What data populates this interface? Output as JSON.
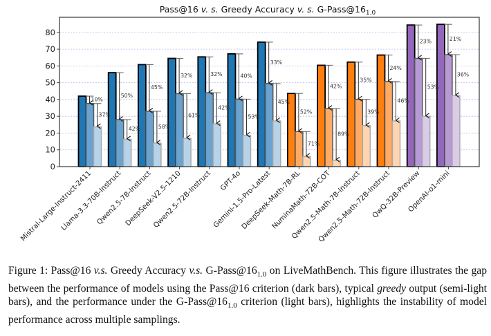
{
  "chart_data": {
    "type": "bar",
    "title": {
      "prefix": "Pass@16 ",
      "vs1": "v. s.",
      "middle": " Greedy Accuracy ",
      "vs2": "v. s.",
      "suffix": " G-Pass@16",
      "subscript": "1.0"
    },
    "xlabel": "",
    "ylabel": "",
    "ylim": [
      0,
      89
    ],
    "yticks": [
      0,
      10,
      20,
      30,
      40,
      50,
      60,
      70,
      80
    ],
    "grid": "horizontal dashed",
    "legend": "none",
    "categories": [
      "Mistral-Large-Instruct-2411",
      "Llama-3.3-70B-Instruct",
      "Qwen2.5-7B-Instruct",
      "DeepSeek-V2.5-1210",
      "Qwen2.5-72B-Instruct",
      "GPT-4o",
      "Gemini-1.5-Pro-Latest",
      "DeepSeek-Math-7B-RL",
      "NuminaMath-72B-COT",
      "Qwen2.5-Math-7B-Instruct",
      "Qwen2.5-Math-72B-Instruct",
      "QwQ-32B-Preview",
      "OpenAI-o1-mini"
    ],
    "color_family": [
      "blue",
      "blue",
      "blue",
      "blue",
      "blue",
      "blue",
      "blue",
      "orange",
      "orange",
      "orange",
      "orange",
      "purple",
      "purple"
    ],
    "palette": {
      "blue": [
        "#1f77b4",
        "#6aa3cf",
        "#b7d3e9"
      ],
      "orange": [
        "#ff7f0e",
        "#ffab66",
        "#ffd5b0"
      ],
      "purple": [
        "#9467bd",
        "#b79ad5",
        "#dacce9"
      ]
    },
    "series": [
      {
        "name": "Pass@16",
        "style": "dark",
        "values": [
          42.0,
          56.0,
          60.8,
          64.5,
          65.4,
          67.2,
          74.2,
          43.6,
          60.4,
          62.3,
          66.5,
          84.4,
          84.8
        ]
      },
      {
        "name": "Greedy Accuracy",
        "style": "semi-light",
        "values": [
          37.6,
          28.0,
          33.0,
          43.5,
          44.0,
          40.2,
          49.5,
          20.9,
          34.6,
          40.1,
          50.7,
          64.5,
          66.7
        ]
      },
      {
        "name": "G-Pass@16_1.0",
        "style": "light",
        "values": [
          23.7,
          16.3,
          14.0,
          16.9,
          25.5,
          18.6,
          27.2,
          6.0,
          3.8,
          24.4,
          27.2,
          30.0,
          42.3
        ]
      }
    ],
    "annotations": {
      "pass_to_greedy_drop": [
        "10%",
        "50%",
        "45%",
        "32%",
        "32%",
        "40%",
        "33%",
        "52%",
        "42%",
        "35%",
        "24%",
        "23%",
        "21%"
      ],
      "greedy_to_gpass_drop": [
        "37%",
        "42%",
        "58%",
        "61%",
        "42%",
        "53%",
        "45%",
        "71%",
        "89%",
        "39%",
        "46%",
        "53%",
        "36%"
      ]
    }
  },
  "caption": {
    "label": "Figure 1:",
    "t1": " Pass@16 ",
    "vs1": "v.s.",
    "t2": " Greedy Accuracy ",
    "vs2": "v.s.",
    "t3": " G-Pass@16",
    "sub1": "1.0",
    "t4": " on LiveMathBench. This figure illustrates the gap between the performance of models using the Pass@16 criterion (dark bars), typical ",
    "greedy": "greedy",
    "t5": " output (semi-light bars), and the performance under the G-Pass@16",
    "sub2": "1.0",
    "t6": " criterion (light bars), highlights the instability of model performance across multiple samplings."
  }
}
